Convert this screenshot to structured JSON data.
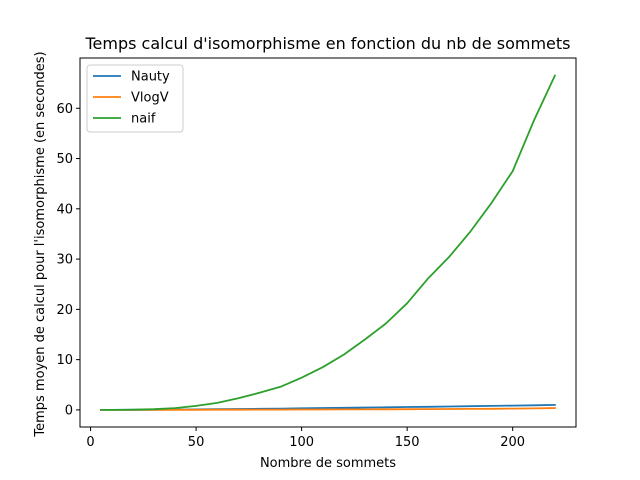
{
  "chart_data": {
    "type": "line",
    "title": "Temps calcul d'isomorphisme en fonction du nb de sommets",
    "xlabel": "Nombre de sommets",
    "ylabel": "Temps moyen de calcul pour l'isomorphisme (en secondes)",
    "xlim": [
      -5,
      230
    ],
    "ylim": [
      -3.4,
      70
    ],
    "xticks": [
      0,
      50,
      100,
      150,
      200
    ],
    "yticks": [
      0,
      10,
      20,
      30,
      40,
      50,
      60
    ],
    "grid": false,
    "legend_position": "top-left",
    "x": [
      5,
      10,
      20,
      30,
      40,
      50,
      60,
      70,
      80,
      90,
      100,
      110,
      120,
      130,
      140,
      150,
      160,
      170,
      180,
      190,
      200,
      210,
      220
    ],
    "series": [
      {
        "name": "Nauty",
        "color": "#1f77b4",
        "values": [
          0.0,
          0.01,
          0.02,
          0.04,
          0.07,
          0.1,
          0.14,
          0.18,
          0.22,
          0.27,
          0.32,
          0.37,
          0.42,
          0.47,
          0.52,
          0.57,
          0.62,
          0.68,
          0.74,
          0.8,
          0.85,
          0.92,
          1.0
        ]
      },
      {
        "name": "VlogV",
        "color": "#ff7f0e",
        "values": [
          0.0,
          0.0,
          0.01,
          0.01,
          0.02,
          0.03,
          0.04,
          0.05,
          0.06,
          0.07,
          0.08,
          0.09,
          0.1,
          0.11,
          0.12,
          0.14,
          0.16,
          0.18,
          0.2,
          0.23,
          0.26,
          0.3,
          0.35
        ]
      },
      {
        "name": "naif",
        "color": "#2ca02c",
        "values": [
          0.0,
          0.0,
          0.05,
          0.15,
          0.35,
          0.8,
          1.4,
          2.3,
          3.4,
          4.6,
          6.4,
          8.5,
          11.0,
          14.0,
          17.2,
          21.2,
          26.2,
          30.5,
          35.5,
          41.2,
          47.5,
          57.5,
          66.5
        ]
      }
    ]
  }
}
